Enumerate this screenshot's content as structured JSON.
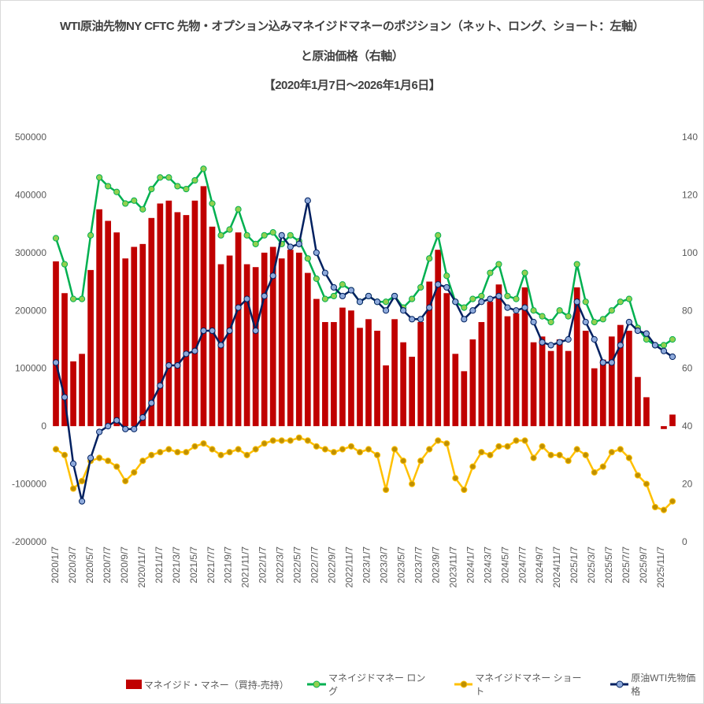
{
  "chart_data": {
    "type": "bar+line",
    "title": "WTI原油先物NY CFTC  先物・オプション込みマネイジドマネーのポジション（ネット、ロング、ショート：左軸）",
    "subtitle": "と原油価格（右軸）",
    "period": "【2020年1月7日～2026年1月6日】",
    "y_left": {
      "range": [
        -200000,
        500000
      ],
      "ticks": [
        "500000",
        "400000",
        "300000",
        "200000",
        "100000",
        "0",
        "-100000",
        "-200000"
      ]
    },
    "y_right": {
      "range": [
        0,
        140
      ],
      "ticks": [
        "140",
        "120",
        "100",
        "80",
        "60",
        "40",
        "20",
        "0"
      ]
    },
    "x_ticks": [
      "2020/1/7",
      "2020/3/7",
      "2020/5/7",
      "2020/7/7",
      "2020/9/7",
      "2020/11/7",
      "2021/1/7",
      "2021/3/7",
      "2021/5/7",
      "2021/7/7",
      "2021/9/7",
      "2021/11/7",
      "2022/1/7",
      "2022/3/7",
      "2022/5/7",
      "2022/7/7",
      "2022/9/7",
      "2022/11/7",
      "2023/1/7",
      "2023/3/7",
      "2023/5/7",
      "2023/7/7",
      "2023/9/7",
      "2023/11/7",
      "2024/1/7",
      "2024/3/7",
      "2024/5/7",
      "2024/7/7",
      "2024/9/7",
      "2024/11/7",
      "2025/1/7",
      "2025/3/7",
      "2025/5/7",
      "2025/7/7",
      "2025/9/7",
      "2025/11/7"
    ],
    "x_start": "2020-01",
    "x_step": "monthly",
    "colors": {
      "net": "#c00000",
      "long": "#00b050",
      "short": "#ffc000",
      "price": "#002060"
    },
    "series": [
      {
        "name": "マネイジド・マネー（買持-売持）",
        "type": "bar",
        "axis": "left",
        "values": [
          285000,
          230000,
          112000,
          125000,
          270000,
          375000,
          355000,
          335000,
          290000,
          310000,
          315000,
          360000,
          385000,
          390000,
          370000,
          365000,
          390000,
          415000,
          345000,
          280000,
          295000,
          335000,
          280000,
          275000,
          300000,
          310000,
          290000,
          305000,
          300000,
          265000,
          220000,
          180000,
          180000,
          205000,
          200000,
          170000,
          185000,
          165000,
          105000,
          185000,
          145000,
          120000,
          180000,
          250000,
          305000,
          230000,
          125000,
          95000,
          150000,
          180000,
          215000,
          245000,
          190000,
          195000,
          240000,
          145000,
          155000,
          130000,
          150000,
          130000,
          240000,
          165000,
          100000,
          115000,
          155000,
          175000,
          165000,
          85000,
          50000,
          0,
          -5000,
          20000
        ]
      },
      {
        "name": "マネイジドマネー ロング",
        "type": "line",
        "axis": "left",
        "values": [
          325000,
          280000,
          220000,
          220000,
          330000,
          430000,
          415000,
          405000,
          385000,
          390000,
          375000,
          410000,
          430000,
          430000,
          415000,
          410000,
          425000,
          445000,
          385000,
          330000,
          340000,
          375000,
          330000,
          315000,
          330000,
          335000,
          315000,
          330000,
          320000,
          290000,
          255000,
          220000,
          225000,
          245000,
          235000,
          215000,
          225000,
          215000,
          215000,
          225000,
          205000,
          220000,
          240000,
          290000,
          330000,
          260000,
          215000,
          205000,
          220000,
          225000,
          265000,
          280000,
          225000,
          220000,
          265000,
          200000,
          190000,
          180000,
          200000,
          190000,
          280000,
          215000,
          180000,
          185000,
          200000,
          215000,
          220000,
          170000,
          150000,
          140000,
          140000,
          150000
        ]
      },
      {
        "name": "マネイジドマネー ショート",
        "type": "line",
        "axis": "left",
        "values": [
          -40000,
          -50000,
          -108000,
          -95000,
          -60000,
          -55000,
          -60000,
          -70000,
          -95000,
          -80000,
          -60000,
          -50000,
          -45000,
          -40000,
          -45000,
          -45000,
          -35000,
          -30000,
          -40000,
          -50000,
          -45000,
          -40000,
          -50000,
          -40000,
          -30000,
          -25000,
          -25000,
          -25000,
          -20000,
          -25000,
          -35000,
          -40000,
          -45000,
          -40000,
          -35000,
          -45000,
          -40000,
          -50000,
          -110000,
          -40000,
          -60000,
          -100000,
          -60000,
          -40000,
          -25000,
          -30000,
          -90000,
          -110000,
          -70000,
          -45000,
          -50000,
          -35000,
          -35000,
          -25000,
          -25000,
          -55000,
          -35000,
          -50000,
          -50000,
          -60000,
          -40000,
          -50000,
          -80000,
          -70000,
          -45000,
          -40000,
          -55000,
          -85000,
          -100000,
          -140000,
          -145000,
          -130000
        ]
      },
      {
        "name": "原油WTI先物価格",
        "type": "line",
        "axis": "right",
        "values": [
          62,
          50,
          27,
          14,
          29,
          38,
          40,
          42,
          39,
          39,
          43,
          48,
          54,
          61,
          61,
          65,
          66,
          73,
          73,
          68,
          73,
          81,
          84,
          73,
          85,
          92,
          106,
          102,
          103,
          118,
          100,
          93,
          88,
          85,
          87,
          83,
          85,
          83,
          80,
          85,
          80,
          77,
          77,
          81,
          89,
          88,
          83,
          77,
          80,
          83,
          84,
          85,
          81,
          80,
          81,
          76,
          69,
          68,
          69,
          70,
          83,
          76,
          70,
          62,
          62,
          68,
          76,
          73,
          72,
          68,
          66,
          64
        ]
      }
    ]
  }
}
